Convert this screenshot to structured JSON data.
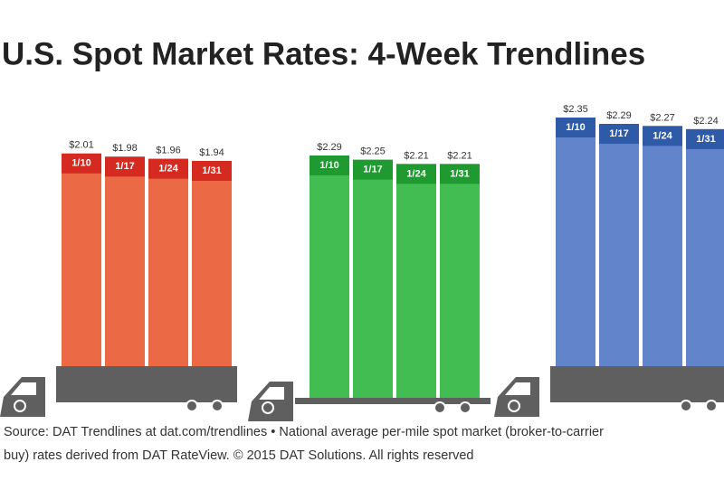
{
  "title": "U.S. Spot Market Rates: 4-Week Trendlines",
  "source_lines": [
    "Source: DAT Trendlines at dat.com/trendlines • National average per-mile spot market (broker-to-carrier",
    "buy) rates derived from DAT RateView. © 2015 DAT Solutions. All rights reserved"
  ],
  "chart_data": [
    {
      "type": "bar",
      "categories": [
        "1/10",
        "1/17",
        "1/24",
        "1/31"
      ],
      "values": [
        2.01,
        1.98,
        1.96,
        1.94
      ],
      "value_labels": [
        "$2.01",
        "$1.98",
        "$1.96",
        "$1.94"
      ],
      "color": "#eb6a45",
      "label_color": "#d42a1f"
    },
    {
      "type": "bar",
      "categories": [
        "1/10",
        "1/17",
        "1/24",
        "1/31"
      ],
      "values": [
        2.29,
        2.25,
        2.21,
        2.21
      ],
      "value_labels": [
        "$2.29",
        "$2.25",
        "$2.21",
        "$2.21"
      ],
      "color": "#41bd52",
      "label_color": "#1f9a30"
    },
    {
      "type": "bar",
      "categories": [
        "1/10",
        "1/17",
        "1/24",
        "1/31"
      ],
      "values": [
        2.35,
        2.29,
        2.27,
        2.24
      ],
      "value_labels": [
        "$2.35",
        "$2.29",
        "$2.27",
        "$2.24"
      ],
      "color": "#6184ca",
      "label_color": "#2f5aa8"
    }
  ]
}
